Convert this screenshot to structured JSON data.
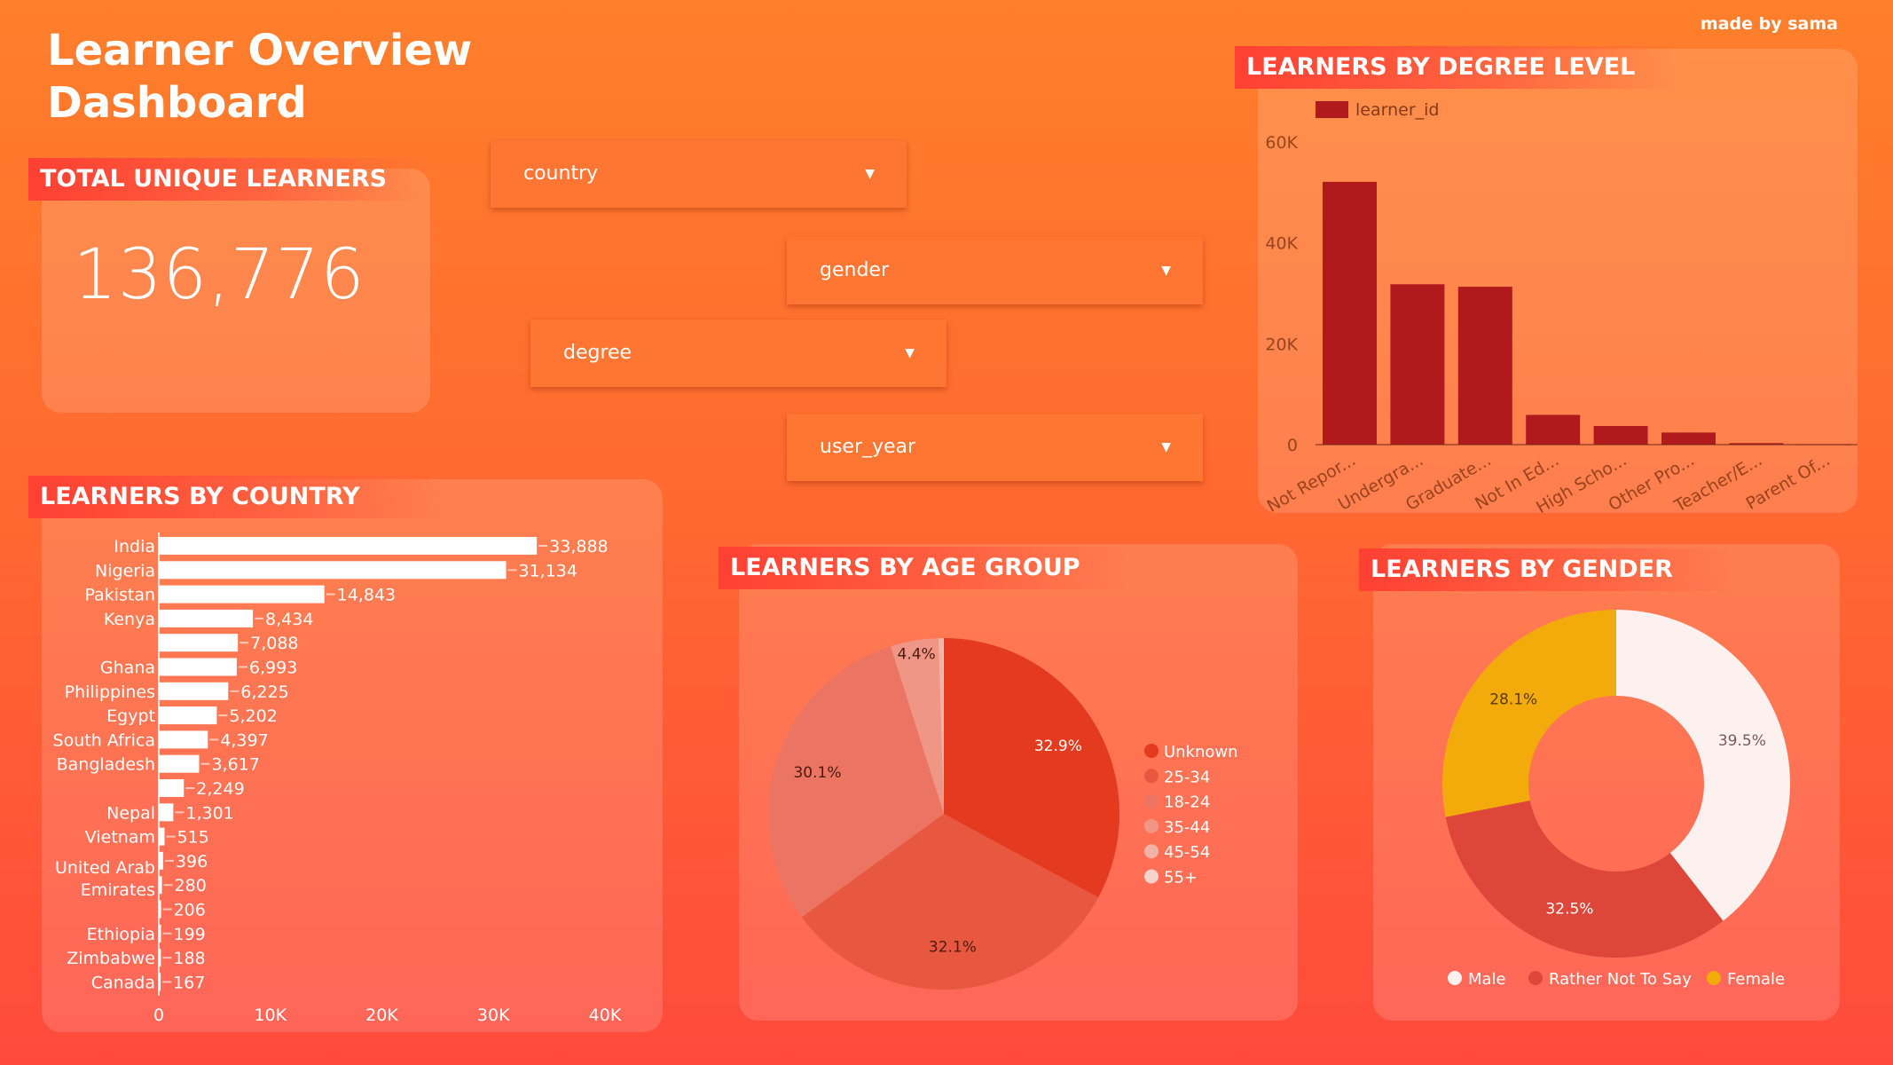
{
  "header": {
    "title": "Learner Overview Dashboard",
    "credit": "made by sama"
  },
  "total": {
    "label": "TOTAL UNIQUE LEARNERS",
    "value": "136,776"
  },
  "filters": [
    {
      "label": "country"
    },
    {
      "label": "gender"
    },
    {
      "label": "degree"
    },
    {
      "label": "user_year"
    }
  ],
  "colors": {
    "degree_bar": "#b01a1c",
    "country_bar": "#ffffff"
  },
  "chart_data": [
    {
      "title": "LEARNERS BY COUNTRY",
      "type": "bar",
      "orientation": "horizontal",
      "categories": [
        "India",
        "Nigeria",
        "Pakistan",
        "Kenya",
        "",
        "Ghana",
        "Philippines",
        "Egypt",
        "South Africa",
        "Bangladesh",
        "",
        "Nepal",
        "Vietnam",
        "",
        "United Arab Emirates",
        "",
        "Ethiopia",
        "Zimbabwe",
        "Canada"
      ],
      "values": [
        33888,
        31134,
        14843,
        8434,
        7088,
        6993,
        6225,
        5202,
        4397,
        3617,
        2249,
        1301,
        515,
        396,
        280,
        206,
        199,
        188,
        167
      ],
      "data_labels": [
        "33,888",
        "31,134",
        "14,843",
        "8,434",
        "7,088",
        "6,993",
        "6,225",
        "5,202",
        "4,397",
        "3,617",
        "2,249",
        "1,301",
        "515",
        "396",
        "280",
        "206",
        "199",
        "188",
        "167"
      ],
      "xlim": [
        0,
        40000
      ],
      "xticks": [
        "0",
        "10K",
        "20K",
        "30K",
        "40K"
      ],
      "grid": false
    },
    {
      "title": "LEARNERS BY DEGREE LEVEL",
      "type": "bar",
      "categories": [
        "Not Repor...",
        "Undergra...",
        "Graduate...",
        "Not In Ed...",
        "High Scho...",
        "Other Pro...",
        "Teacher/E...",
        "Parent Of..."
      ],
      "series": [
        {
          "name": "learner_id",
          "values": [
            52100,
            31800,
            31300,
            5900,
            3700,
            2400,
            300,
            50
          ]
        }
      ],
      "ylim": [
        0,
        60000
      ],
      "yticks": [
        "0",
        "20K",
        "40K",
        "60K"
      ],
      "legend": "top-left",
      "grid": false
    },
    {
      "title": "LEARNERS BY AGE GROUP",
      "type": "pie",
      "labels": [
        "Unknown",
        "25-34",
        "18-24",
        "35-44",
        "45-54",
        "55+"
      ],
      "values": [
        32.9,
        32.1,
        30.1,
        4.4,
        0.4,
        0.1
      ],
      "data_labels": [
        "32.9%",
        "32.1%",
        "30.1%",
        "4.4%",
        "",
        ""
      ],
      "colors": [
        "#e43a1f",
        "#e85841",
        "#ec7462",
        "#f09686",
        "#f3b2a8",
        "#f8d3cc"
      ],
      "legend": "right"
    },
    {
      "title": "LEARNERS BY GENDER",
      "type": "pie",
      "donut": true,
      "labels": [
        "Male",
        "Rather Not To Say",
        "Female"
      ],
      "values": [
        39.5,
        32.5,
        28.1
      ],
      "data_labels": [
        "39.5%",
        "32.5%",
        "28.1%"
      ],
      "colors": [
        "#fdf1ef",
        "#de463a",
        "#f2ab0b"
      ],
      "legend": "bottom"
    }
  ]
}
